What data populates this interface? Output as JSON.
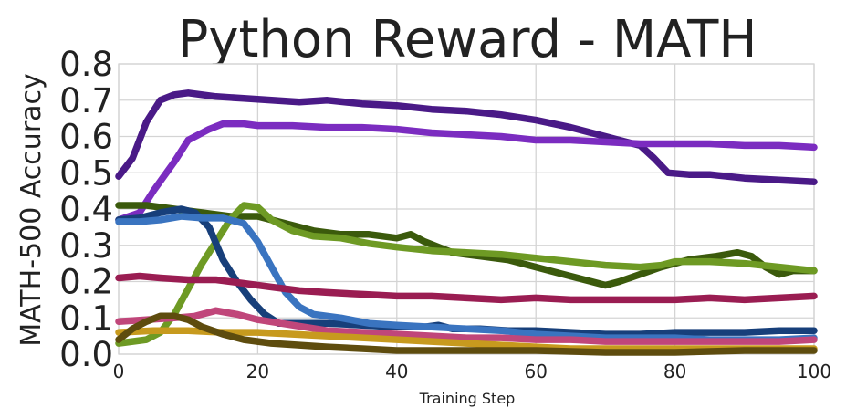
{
  "chart_data": {
    "type": "line",
    "title": "Python Reward - MATH",
    "xlabel": "Training Step",
    "ylabel": "MATH-500 Accuracy",
    "xlim": [
      0,
      100
    ],
    "ylim": [
      0,
      0.8
    ],
    "xticks": [
      0,
      20,
      40,
      60,
      80,
      100
    ],
    "yticks": [
      0.0,
      0.1,
      0.2,
      0.3,
      0.4,
      0.5,
      0.6,
      0.7,
      0.8
    ],
    "grid": true,
    "series": [
      {
        "color": "#4a1a87",
        "points": [
          [
            0,
            0.49
          ],
          [
            2,
            0.54
          ],
          [
            4,
            0.64
          ],
          [
            6,
            0.7
          ],
          [
            8,
            0.715
          ],
          [
            10,
            0.72
          ],
          [
            14,
            0.71
          ],
          [
            18,
            0.705
          ],
          [
            22,
            0.7
          ],
          [
            26,
            0.695
          ],
          [
            30,
            0.7
          ],
          [
            35,
            0.69
          ],
          [
            40,
            0.685
          ],
          [
            45,
            0.675
          ],
          [
            50,
            0.67
          ],
          [
            55,
            0.66
          ],
          [
            60,
            0.645
          ],
          [
            65,
            0.625
          ],
          [
            70,
            0.6
          ],
          [
            73,
            0.585
          ],
          [
            75,
            0.575
          ],
          [
            77,
            0.54
          ],
          [
            79,
            0.5
          ],
          [
            82,
            0.495
          ],
          [
            85,
            0.495
          ],
          [
            90,
            0.485
          ],
          [
            95,
            0.48
          ],
          [
            100,
            0.475
          ]
        ]
      },
      {
        "color": "#7b2cc0",
        "points": [
          [
            0,
            0.37
          ],
          [
            3,
            0.39
          ],
          [
            5,
            0.45
          ],
          [
            8,
            0.53
          ],
          [
            10,
            0.59
          ],
          [
            13,
            0.62
          ],
          [
            15,
            0.635
          ],
          [
            18,
            0.635
          ],
          [
            20,
            0.63
          ],
          [
            25,
            0.63
          ],
          [
            30,
            0.625
          ],
          [
            35,
            0.625
          ],
          [
            40,
            0.62
          ],
          [
            45,
            0.61
          ],
          [
            50,
            0.605
          ],
          [
            55,
            0.6
          ],
          [
            60,
            0.59
          ],
          [
            65,
            0.59
          ],
          [
            70,
            0.585
          ],
          [
            75,
            0.58
          ],
          [
            80,
            0.58
          ],
          [
            85,
            0.58
          ],
          [
            90,
            0.575
          ],
          [
            95,
            0.575
          ],
          [
            100,
            0.57
          ]
        ]
      },
      {
        "color": "#3b5a0c",
        "points": [
          [
            0,
            0.41
          ],
          [
            4,
            0.41
          ],
          [
            8,
            0.4
          ],
          [
            12,
            0.39
          ],
          [
            16,
            0.38
          ],
          [
            20,
            0.38
          ],
          [
            24,
            0.36
          ],
          [
            28,
            0.34
          ],
          [
            32,
            0.33
          ],
          [
            36,
            0.33
          ],
          [
            40,
            0.32
          ],
          [
            42,
            0.33
          ],
          [
            44,
            0.31
          ],
          [
            48,
            0.28
          ],
          [
            52,
            0.27
          ],
          [
            56,
            0.26
          ],
          [
            60,
            0.24
          ],
          [
            64,
            0.22
          ],
          [
            68,
            0.2
          ],
          [
            70,
            0.19
          ],
          [
            72,
            0.2
          ],
          [
            75,
            0.22
          ],
          [
            78,
            0.24
          ],
          [
            82,
            0.26
          ],
          [
            86,
            0.27
          ],
          [
            89,
            0.28
          ],
          [
            91,
            0.27
          ],
          [
            93,
            0.24
          ],
          [
            95,
            0.22
          ],
          [
            97,
            0.23
          ],
          [
            100,
            0.23
          ]
        ]
      },
      {
        "color": "#6e9a24",
        "points": [
          [
            0,
            0.03
          ],
          [
            4,
            0.04
          ],
          [
            6,
            0.06
          ],
          [
            8,
            0.11
          ],
          [
            10,
            0.18
          ],
          [
            12,
            0.25
          ],
          [
            14,
            0.31
          ],
          [
            16,
            0.37
          ],
          [
            18,
            0.41
          ],
          [
            20,
            0.405
          ],
          [
            22,
            0.37
          ],
          [
            25,
            0.34
          ],
          [
            28,
            0.325
          ],
          [
            32,
            0.32
          ],
          [
            36,
            0.305
          ],
          [
            40,
            0.295
          ],
          [
            45,
            0.285
          ],
          [
            50,
            0.28
          ],
          [
            55,
            0.275
          ],
          [
            60,
            0.265
          ],
          [
            65,
            0.255
          ],
          [
            70,
            0.245
          ],
          [
            75,
            0.24
          ],
          [
            78,
            0.245
          ],
          [
            80,
            0.255
          ],
          [
            85,
            0.255
          ],
          [
            90,
            0.25
          ],
          [
            95,
            0.24
          ],
          [
            100,
            0.23
          ]
        ]
      },
      {
        "color": "#173f7a",
        "points": [
          [
            0,
            0.37
          ],
          [
            3,
            0.375
          ],
          [
            6,
            0.39
          ],
          [
            9,
            0.4
          ],
          [
            11,
            0.39
          ],
          [
            13,
            0.35
          ],
          [
            15,
            0.26
          ],
          [
            17,
            0.2
          ],
          [
            19,
            0.15
          ],
          [
            21,
            0.11
          ],
          [
            23,
            0.085
          ],
          [
            27,
            0.085
          ],
          [
            30,
            0.085
          ],
          [
            35,
            0.08
          ],
          [
            40,
            0.075
          ],
          [
            44,
            0.075
          ],
          [
            46,
            0.08
          ],
          [
            48,
            0.07
          ],
          [
            52,
            0.07
          ],
          [
            56,
            0.065
          ],
          [
            60,
            0.065
          ],
          [
            65,
            0.06
          ],
          [
            70,
            0.055
          ],
          [
            75,
            0.055
          ],
          [
            80,
            0.06
          ],
          [
            85,
            0.06
          ],
          [
            90,
            0.06
          ],
          [
            95,
            0.065
          ],
          [
            100,
            0.065
          ]
        ]
      },
      {
        "color": "#3a74c0",
        "points": [
          [
            0,
            0.365
          ],
          [
            3,
            0.365
          ],
          [
            6,
            0.37
          ],
          [
            9,
            0.38
          ],
          [
            12,
            0.375
          ],
          [
            15,
            0.375
          ],
          [
            18,
            0.36
          ],
          [
            20,
            0.31
          ],
          [
            22,
            0.24
          ],
          [
            24,
            0.17
          ],
          [
            26,
            0.13
          ],
          [
            28,
            0.11
          ],
          [
            32,
            0.1
          ],
          [
            36,
            0.085
          ],
          [
            40,
            0.08
          ],
          [
            45,
            0.075
          ],
          [
            50,
            0.07
          ],
          [
            55,
            0.065
          ],
          [
            60,
            0.055
          ],
          [
            65,
            0.05
          ],
          [
            70,
            0.045
          ],
          [
            75,
            0.045
          ],
          [
            80,
            0.045
          ],
          [
            85,
            0.04
          ],
          [
            90,
            0.04
          ],
          [
            95,
            0.04
          ],
          [
            100,
            0.045
          ]
        ]
      },
      {
        "color": "#9a1d52",
        "points": [
          [
            0,
            0.21
          ],
          [
            3,
            0.215
          ],
          [
            6,
            0.21
          ],
          [
            10,
            0.205
          ],
          [
            14,
            0.205
          ],
          [
            18,
            0.195
          ],
          [
            22,
            0.185
          ],
          [
            26,
            0.175
          ],
          [
            30,
            0.17
          ],
          [
            35,
            0.165
          ],
          [
            40,
            0.16
          ],
          [
            45,
            0.16
          ],
          [
            50,
            0.155
          ],
          [
            55,
            0.15
          ],
          [
            60,
            0.155
          ],
          [
            65,
            0.15
          ],
          [
            70,
            0.15
          ],
          [
            75,
            0.15
          ],
          [
            80,
            0.15
          ],
          [
            85,
            0.155
          ],
          [
            90,
            0.15
          ],
          [
            95,
            0.155
          ],
          [
            100,
            0.16
          ]
        ]
      },
      {
        "color": "#c0467a",
        "points": [
          [
            0,
            0.09
          ],
          [
            4,
            0.095
          ],
          [
            8,
            0.1
          ],
          [
            11,
            0.105
          ],
          [
            14,
            0.12
          ],
          [
            17,
            0.11
          ],
          [
            20,
            0.095
          ],
          [
            25,
            0.08
          ],
          [
            30,
            0.065
          ],
          [
            35,
            0.06
          ],
          [
            40,
            0.055
          ],
          [
            45,
            0.05
          ],
          [
            50,
            0.045
          ],
          [
            55,
            0.045
          ],
          [
            60,
            0.04
          ],
          [
            65,
            0.04
          ],
          [
            70,
            0.035
          ],
          [
            75,
            0.035
          ],
          [
            80,
            0.035
          ],
          [
            85,
            0.035
          ],
          [
            90,
            0.035
          ],
          [
            95,
            0.035
          ],
          [
            100,
            0.04
          ]
        ]
      },
      {
        "color": "#c79a1e",
        "points": [
          [
            0,
            0.06
          ],
          [
            5,
            0.065
          ],
          [
            10,
            0.065
          ],
          [
            15,
            0.06
          ],
          [
            20,
            0.06
          ],
          [
            25,
            0.055
          ],
          [
            30,
            0.05
          ],
          [
            35,
            0.045
          ],
          [
            40,
            0.04
          ],
          [
            45,
            0.035
          ],
          [
            50,
            0.03
          ],
          [
            55,
            0.025
          ],
          [
            60,
            0.02
          ],
          [
            65,
            0.015
          ],
          [
            70,
            0.015
          ],
          [
            75,
            0.015
          ],
          [
            80,
            0.015
          ],
          [
            85,
            0.015
          ],
          [
            90,
            0.015
          ],
          [
            95,
            0.015
          ],
          [
            100,
            0.015
          ]
        ]
      },
      {
        "color": "#5e4c0e",
        "points": [
          [
            0,
            0.04
          ],
          [
            2,
            0.07
          ],
          [
            4,
            0.09
          ],
          [
            6,
            0.105
          ],
          [
            8,
            0.105
          ],
          [
            10,
            0.095
          ],
          [
            12,
            0.075
          ],
          [
            15,
            0.055
          ],
          [
            18,
            0.04
          ],
          [
            22,
            0.03
          ],
          [
            26,
            0.025
          ],
          [
            30,
            0.02
          ],
          [
            35,
            0.015
          ],
          [
            40,
            0.01
          ],
          [
            45,
            0.01
          ],
          [
            50,
            0.01
          ],
          [
            60,
            0.01
          ],
          [
            70,
            0.005
          ],
          [
            80,
            0.005
          ],
          [
            90,
            0.01
          ],
          [
            100,
            0.01
          ]
        ]
      }
    ]
  }
}
